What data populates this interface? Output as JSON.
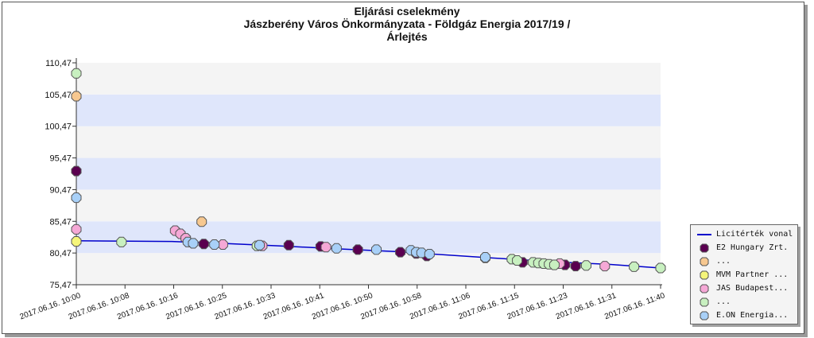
{
  "title_lines": [
    "Eljárási cselekmény",
    "Jászberény Város Önkormányzata - Földgáz Energia 2017/19 /",
    "Árlejtés"
  ],
  "chart_data": {
    "type": "scatter",
    "ylim": [
      75.47,
      110.47
    ],
    "y_ticks": [
      "75,47",
      "80,47",
      "85,47",
      "90,47",
      "95,47",
      "100,47",
      "105,47",
      "110,47"
    ],
    "x_ticks": [
      "2017.06.16. 10:00",
      "2017.06.16. 10:08",
      "2017.06.16. 10:16",
      "2017.06.16. 10:25",
      "2017.06.16. 10:33",
      "2017.06.16. 10:41",
      "2017.06.16. 10:50",
      "2017.06.16. 10:58",
      "2017.06.16. 11:06",
      "2017.06.16. 11:15",
      "2017.06.16. 11:23",
      "2017.06.16. 11:31",
      "2017.06.16. 11:40"
    ],
    "x_unit": "minutes after 10:00",
    "bands": "alternating #f4f4f4 / #dfe6fb",
    "line": {
      "name": "Licitérték vonal",
      "color": "#0000cc",
      "points": [
        [
          0,
          82.4
        ],
        [
          18,
          82.3
        ],
        [
          27,
          82.0
        ],
        [
          38,
          81.6
        ],
        [
          50,
          81.1
        ],
        [
          60,
          80.7
        ],
        [
          78,
          79.7
        ],
        [
          92,
          79.0
        ],
        [
          100,
          78.7
        ],
        [
          110,
          78.1
        ]
      ]
    },
    "series": [
      {
        "name": "E2 Hungary Zrt.",
        "color": "#5a0050",
        "points": [
          [
            0,
            93.4
          ],
          [
            24,
            81.9
          ],
          [
            40,
            81.7
          ],
          [
            46,
            81.5
          ],
          [
            53,
            81.0
          ],
          [
            61,
            80.6
          ],
          [
            64,
            80.4
          ],
          [
            66,
            80.0
          ],
          [
            77,
            79.7
          ],
          [
            84,
            79.0
          ],
          [
            92,
            78.6
          ],
          [
            94,
            78.4
          ]
        ]
      },
      {
        "name": "...",
        "color": "#f7c890",
        "points": [
          [
            0,
            105.2
          ],
          [
            23.6,
            85.4
          ]
        ]
      },
      {
        "name": "MVM Partner ...",
        "color": "#f5f57a",
        "points": [
          [
            0,
            82.3
          ]
        ]
      },
      {
        "name": "JAS Budapest...",
        "color": "#f5a8d6",
        "points": [
          [
            0,
            84.2
          ],
          [
            18.6,
            84.0
          ],
          [
            19.6,
            83.5
          ],
          [
            20.6,
            82.8
          ],
          [
            27.6,
            81.8
          ],
          [
            35,
            81.6
          ],
          [
            47,
            81.4
          ],
          [
            91,
            78.8
          ],
          [
            99.5,
            78.4
          ]
        ]
      },
      {
        "name": "...",
        "color": "#c8f0c0",
        "points": [
          [
            0,
            108.8
          ],
          [
            8.5,
            82.2
          ],
          [
            34,
            81.6
          ],
          [
            82,
            79.5
          ],
          [
            83,
            79.3
          ],
          [
            86,
            79.0
          ],
          [
            87,
            78.9
          ],
          [
            88,
            78.8
          ],
          [
            89,
            78.7
          ],
          [
            90,
            78.6
          ],
          [
            96,
            78.5
          ],
          [
            105,
            78.3
          ],
          [
            110,
            78.1
          ]
        ]
      },
      {
        "name": "E.ON Energia...",
        "color": "#a8d0f8",
        "points": [
          [
            0,
            89.2
          ],
          [
            21,
            82.2
          ],
          [
            22,
            82.0
          ],
          [
            26,
            81.8
          ],
          [
            34.5,
            81.7
          ],
          [
            49,
            81.2
          ],
          [
            56.5,
            81.0
          ],
          [
            63,
            80.9
          ],
          [
            64,
            80.6
          ],
          [
            65,
            80.5
          ],
          [
            66.5,
            80.3
          ],
          [
            77,
            79.8
          ]
        ]
      }
    ]
  }
}
